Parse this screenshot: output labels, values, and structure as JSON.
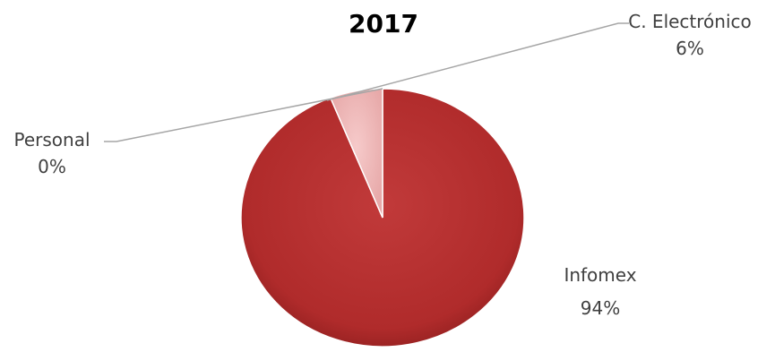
{
  "chart_data": {
    "type": "pie",
    "title": "2017",
    "slices": [
      {
        "label": "Infomex",
        "value": 94,
        "display": "94%",
        "color": "#B83232"
      },
      {
        "label": "C. Electrónico",
        "value": 6,
        "display": "6%",
        "color": "#F0B8B8"
      },
      {
        "label": "Personal",
        "value": 0,
        "display": "0%",
        "color": "#A7B4C8"
      }
    ],
    "legend": "none",
    "data_labels": "outside, with leader lines"
  }
}
